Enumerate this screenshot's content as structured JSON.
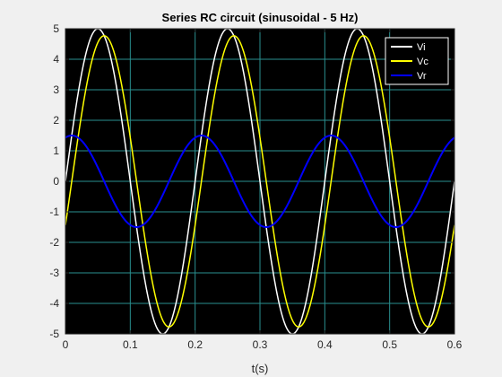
{
  "chart_data": {
    "type": "line",
    "title": "Series RC circuit (sinusoidal - 5 Hz)",
    "xlabel": "t(s)",
    "ylabel": "",
    "xlim": [
      0,
      0.6
    ],
    "ylim": [
      -5,
      5
    ],
    "x_ticks": [
      0,
      0.1,
      0.2,
      0.3,
      0.4,
      0.5,
      0.6
    ],
    "x_tick_labels": [
      "0",
      "0.1",
      "0.2",
      "0.3",
      "0.4",
      "0.5",
      "0.6"
    ],
    "y_ticks": [
      -5,
      -4,
      -3,
      -2,
      -1,
      0,
      1,
      2,
      3,
      4,
      5
    ],
    "y_tick_labels": [
      "-5",
      "-4",
      "-3",
      "-2",
      "-1",
      "0",
      "1",
      "2",
      "3",
      "4",
      "5"
    ],
    "grid": true,
    "background_color": "#000000",
    "grid_color": "#2a8f8f",
    "legend_position": "top-right",
    "frequency_hz": 5,
    "sample_times": [
      0,
      0.025,
      0.05,
      0.075,
      0.1,
      0.125,
      0.15,
      0.175,
      0.2,
      0.225,
      0.25,
      0.275,
      0.3,
      0.325,
      0.35,
      0.375,
      0.4,
      0.425,
      0.45,
      0.475,
      0.5,
      0.525,
      0.55,
      0.575,
      0.6
    ],
    "series": [
      {
        "name": "Vi",
        "color": "#ffffff",
        "amplitude": 5,
        "phase_deg": 0,
        "peaks": [
          [
            0.05,
            5
          ],
          [
            0.15,
            -5
          ],
          [
            0.25,
            5
          ],
          [
            0.35,
            -5
          ],
          [
            0.45,
            5
          ],
          [
            0.55,
            -5
          ]
        ]
      },
      {
        "name": "Vc",
        "color": "#ffff00",
        "amplitude": 4.77,
        "phase_deg": -17.5,
        "peaks": [
          [
            0.06,
            4.77
          ],
          [
            0.16,
            -4.77
          ],
          [
            0.26,
            4.77
          ],
          [
            0.36,
            -4.77
          ],
          [
            0.46,
            4.77
          ],
          [
            0.56,
            -4.77
          ]
        ]
      },
      {
        "name": "Vr",
        "color": "#0000ff",
        "amplitude": 1.5,
        "phase_deg": 72.5,
        "peaks": [
          [
            0.01,
            1.5
          ],
          [
            0.11,
            -1.5
          ],
          [
            0.21,
            1.5
          ],
          [
            0.31,
            -1.5
          ],
          [
            0.41,
            1.5
          ],
          [
            0.51,
            -1.5
          ]
        ]
      }
    ]
  }
}
